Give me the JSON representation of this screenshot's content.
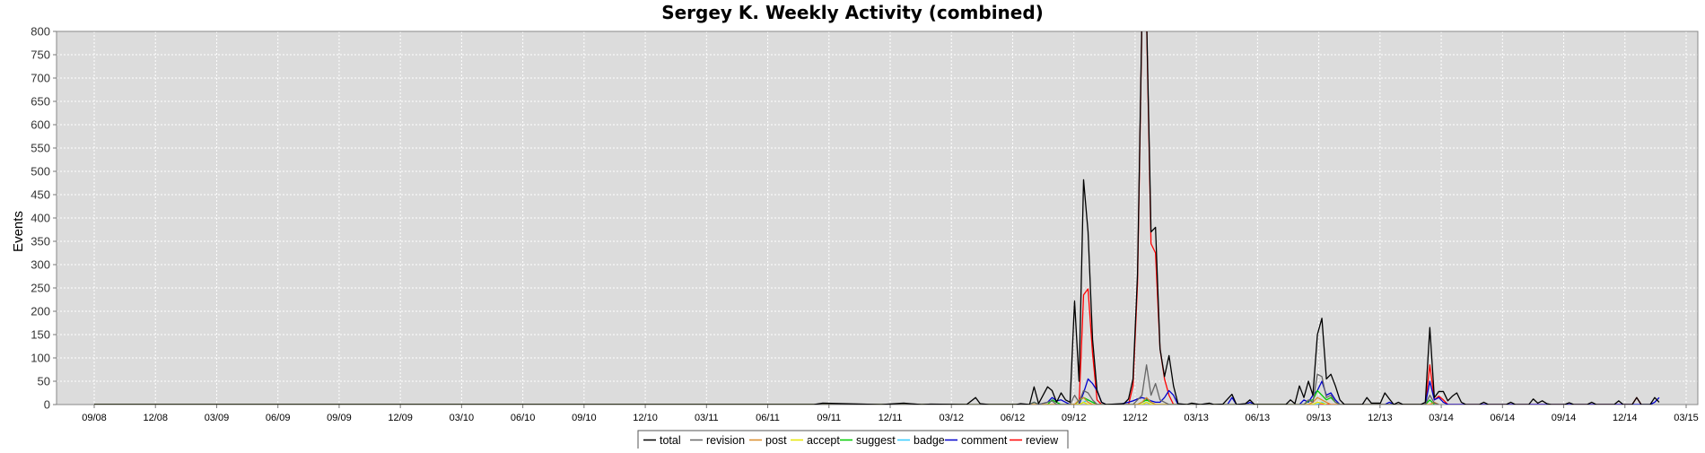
{
  "chart_data": {
    "type": "line",
    "title": "Sergey K. Weekly Activity (combined)",
    "xlabel": "",
    "ylabel": "Events",
    "ylim": [
      0,
      800
    ],
    "yticks": [
      0,
      50,
      100,
      150,
      200,
      250,
      300,
      350,
      400,
      450,
      500,
      550,
      600,
      650,
      700,
      750,
      800
    ],
    "grid": true,
    "legend_position": "bottom-center",
    "x_tick_labels": [
      "09/08",
      "12/08",
      "03/09",
      "06/09",
      "09/09",
      "12/09",
      "03/10",
      "06/10",
      "09/10",
      "12/10",
      "03/11",
      "06/11",
      "09/11",
      "12/11",
      "03/12",
      "06/12",
      "09/12",
      "12/12",
      "03/13",
      "06/13",
      "09/13",
      "12/13",
      "03/14",
      "06/14",
      "09/14",
      "12/14",
      "03/15"
    ],
    "x_range_weeks": [
      0,
      354
    ],
    "series": [
      {
        "name": "total",
        "color": "#000000",
        "points": [
          [
            0,
            0
          ],
          [
            160,
            0
          ],
          [
            162,
            3
          ],
          [
            175,
            0
          ],
          [
            180,
            3
          ],
          [
            184,
            0
          ],
          [
            186,
            1
          ],
          [
            194,
            0
          ],
          [
            196,
            15
          ],
          [
            197,
            2
          ],
          [
            199,
            0
          ],
          [
            205,
            0
          ],
          [
            206,
            2
          ],
          [
            208,
            0
          ],
          [
            209,
            38
          ],
          [
            210,
            2
          ],
          [
            211,
            20
          ],
          [
            212,
            38
          ],
          [
            213,
            30
          ],
          [
            214,
            5
          ],
          [
            215,
            25
          ],
          [
            216,
            10
          ],
          [
            217,
            5
          ],
          [
            218,
            222
          ],
          [
            219,
            50
          ],
          [
            220,
            482
          ],
          [
            221,
            370
          ],
          [
            222,
            140
          ],
          [
            223,
            30
          ],
          [
            224,
            5
          ],
          [
            225,
            0
          ],
          [
            229,
            2
          ],
          [
            230,
            12
          ],
          [
            231,
            55
          ],
          [
            232,
            280
          ],
          [
            233,
            840
          ],
          [
            234,
            840
          ],
          [
            235,
            370
          ],
          [
            236,
            380
          ],
          [
            237,
            120
          ],
          [
            238,
            60
          ],
          [
            239,
            105
          ],
          [
            240,
            40
          ],
          [
            241,
            2
          ],
          [
            243,
            0
          ],
          [
            244,
            3
          ],
          [
            246,
            0
          ],
          [
            248,
            3
          ],
          [
            249,
            0
          ],
          [
            251,
            1
          ],
          [
            253,
            22
          ],
          [
            254,
            0
          ],
          [
            256,
            2
          ],
          [
            257,
            10
          ],
          [
            258,
            0
          ],
          [
            265,
            0
          ],
          [
            266,
            10
          ],
          [
            267,
            2
          ],
          [
            268,
            40
          ],
          [
            269,
            15
          ],
          [
            270,
            50
          ],
          [
            271,
            20
          ],
          [
            272,
            150
          ],
          [
            273,
            185
          ],
          [
            274,
            55
          ],
          [
            275,
            65
          ],
          [
            276,
            40
          ],
          [
            277,
            10
          ],
          [
            278,
            0
          ],
          [
            282,
            0
          ],
          [
            283,
            15
          ],
          [
            284,
            3
          ],
          [
            286,
            3
          ],
          [
            287,
            25
          ],
          [
            288,
            12
          ],
          [
            289,
            0
          ],
          [
            290,
            5
          ],
          [
            291,
            0
          ],
          [
            295,
            0
          ],
          [
            296,
            5
          ],
          [
            297,
            165
          ],
          [
            298,
            15
          ],
          [
            299,
            28
          ],
          [
            300,
            28
          ],
          [
            301,
            8
          ],
          [
            302,
            18
          ],
          [
            303,
            25
          ],
          [
            304,
            5
          ],
          [
            305,
            0
          ],
          [
            308,
            0
          ],
          [
            309,
            5
          ],
          [
            310,
            0
          ],
          [
            314,
            0
          ],
          [
            315,
            5
          ],
          [
            316,
            0
          ],
          [
            319,
            0
          ],
          [
            320,
            12
          ],
          [
            321,
            3
          ],
          [
            322,
            8
          ],
          [
            323,
            2
          ],
          [
            324,
            0
          ],
          [
            327,
            0
          ],
          [
            328,
            4
          ],
          [
            329,
            0
          ],
          [
            332,
            0
          ],
          [
            333,
            5
          ],
          [
            334,
            0
          ],
          [
            338,
            0
          ],
          [
            339,
            8
          ],
          [
            340,
            0
          ],
          [
            342,
            0
          ],
          [
            343,
            15
          ],
          [
            344,
            0
          ],
          [
            346,
            0
          ],
          [
            347,
            15
          ],
          [
            348,
            5
          ]
        ]
      },
      {
        "name": "revision",
        "color": "#666666",
        "points": [
          [
            0,
            0
          ],
          [
            208,
            0
          ],
          [
            209,
            5
          ],
          [
            210,
            0
          ],
          [
            212,
            5
          ],
          [
            213,
            8
          ],
          [
            214,
            0
          ],
          [
            217,
            0
          ],
          [
            218,
            20
          ],
          [
            219,
            5
          ],
          [
            220,
            30
          ],
          [
            221,
            25
          ],
          [
            222,
            10
          ],
          [
            223,
            0
          ],
          [
            231,
            0
          ],
          [
            232,
            10
          ],
          [
            233,
            20
          ],
          [
            234,
            85
          ],
          [
            235,
            20
          ],
          [
            236,
            45
          ],
          [
            237,
            10
          ],
          [
            238,
            5
          ],
          [
            239,
            0
          ],
          [
            269,
            0
          ],
          [
            270,
            10
          ],
          [
            271,
            5
          ],
          [
            272,
            65
          ],
          [
            273,
            60
          ],
          [
            274,
            15
          ],
          [
            275,
            20
          ],
          [
            276,
            5
          ],
          [
            277,
            0
          ],
          [
            296,
            0
          ],
          [
            297,
            20
          ],
          [
            298,
            3
          ],
          [
            299,
            0
          ]
        ]
      },
      {
        "name": "post",
        "color": "#d98c2a",
        "points": [
          [
            0,
            0
          ],
          [
            218,
            0
          ],
          [
            219,
            10
          ],
          [
            220,
            15
          ],
          [
            221,
            5
          ],
          [
            222,
            0
          ],
          [
            232,
            0
          ],
          [
            233,
            5
          ],
          [
            234,
            15
          ],
          [
            235,
            5
          ],
          [
            236,
            0
          ],
          [
            270,
            0
          ],
          [
            271,
            5
          ],
          [
            272,
            15
          ],
          [
            273,
            10
          ],
          [
            274,
            5
          ],
          [
            275,
            0
          ],
          [
            297,
            0
          ],
          [
            298,
            5
          ],
          [
            299,
            0
          ]
        ]
      },
      {
        "name": "accept",
        "color": "#e6e600",
        "points": [
          [
            0,
            0
          ],
          [
            219,
            0
          ],
          [
            220,
            5
          ],
          [
            221,
            0
          ],
          [
            233,
            0
          ],
          [
            234,
            5
          ],
          [
            235,
            0
          ],
          [
            271,
            0
          ],
          [
            272,
            5
          ],
          [
            273,
            3
          ],
          [
            274,
            0
          ]
        ]
      },
      {
        "name": "suggest",
        "color": "#00cc00",
        "points": [
          [
            0,
            0
          ],
          [
            208,
            0
          ],
          [
            209,
            5
          ],
          [
            210,
            0
          ],
          [
            212,
            0
          ],
          [
            213,
            10
          ],
          [
            214,
            5
          ],
          [
            215,
            0
          ],
          [
            218,
            0
          ],
          [
            219,
            8
          ],
          [
            220,
            15
          ],
          [
            221,
            10
          ],
          [
            222,
            5
          ],
          [
            223,
            0
          ],
          [
            232,
            0
          ],
          [
            233,
            5
          ],
          [
            234,
            10
          ],
          [
            235,
            5
          ],
          [
            236,
            0
          ],
          [
            269,
            0
          ],
          [
            270,
            8
          ],
          [
            271,
            10
          ],
          [
            272,
            30
          ],
          [
            273,
            20
          ],
          [
            274,
            10
          ],
          [
            275,
            15
          ],
          [
            276,
            5
          ],
          [
            277,
            0
          ],
          [
            296,
            0
          ],
          [
            297,
            10
          ],
          [
            298,
            0
          ]
        ]
      },
      {
        "name": "badge",
        "color": "#33ccff",
        "points": [
          [
            0,
            0
          ],
          [
            219,
            0
          ],
          [
            220,
            5
          ],
          [
            221,
            10
          ],
          [
            222,
            5
          ],
          [
            223,
            0
          ],
          [
            233,
            0
          ],
          [
            234,
            5
          ],
          [
            235,
            0
          ],
          [
            272,
            0
          ],
          [
            273,
            5
          ],
          [
            274,
            0
          ]
        ]
      },
      {
        "name": "comment",
        "color": "#0000cc",
        "points": [
          [
            0,
            0
          ],
          [
            208,
            0
          ],
          [
            209,
            5
          ],
          [
            210,
            0
          ],
          [
            212,
            5
          ],
          [
            213,
            15
          ],
          [
            214,
            8
          ],
          [
            215,
            10
          ],
          [
            216,
            5
          ],
          [
            217,
            0
          ],
          [
            219,
            0
          ],
          [
            220,
            25
          ],
          [
            221,
            55
          ],
          [
            222,
            45
          ],
          [
            223,
            30
          ],
          [
            224,
            5
          ],
          [
            225,
            0
          ],
          [
            228,
            0
          ],
          [
            229,
            3
          ],
          [
            230,
            5
          ],
          [
            231,
            8
          ],
          [
            232,
            12
          ],
          [
            233,
            15
          ],
          [
            234,
            12
          ],
          [
            235,
            8
          ],
          [
            236,
            5
          ],
          [
            237,
            5
          ],
          [
            238,
            15
          ],
          [
            239,
            30
          ],
          [
            240,
            20
          ],
          [
            241,
            0
          ],
          [
            252,
            0
          ],
          [
            253,
            15
          ],
          [
            254,
            0
          ],
          [
            256,
            0
          ],
          [
            257,
            5
          ],
          [
            258,
            0
          ],
          [
            268,
            0
          ],
          [
            269,
            10
          ],
          [
            270,
            5
          ],
          [
            271,
            20
          ],
          [
            272,
            30
          ],
          [
            273,
            50
          ],
          [
            274,
            20
          ],
          [
            275,
            25
          ],
          [
            276,
            10
          ],
          [
            277,
            0
          ],
          [
            287,
            0
          ],
          [
            288,
            5
          ],
          [
            289,
            0
          ],
          [
            296,
            0
          ],
          [
            297,
            50
          ],
          [
            298,
            10
          ],
          [
            299,
            15
          ],
          [
            300,
            5
          ],
          [
            301,
            0
          ],
          [
            346,
            0
          ],
          [
            347,
            5
          ],
          [
            348,
            15
          ]
        ]
      },
      {
        "name": "review",
        "color": "#ff0000",
        "points": [
          [
            0,
            0
          ],
          [
            219,
            0
          ],
          [
            220,
            235
          ],
          [
            221,
            248
          ],
          [
            222,
            110
          ],
          [
            223,
            10
          ],
          [
            224,
            0
          ],
          [
            230,
            0
          ],
          [
            231,
            40
          ],
          [
            232,
            260
          ],
          [
            233,
            830
          ],
          [
            234,
            830
          ],
          [
            235,
            345
          ],
          [
            236,
            325
          ],
          [
            237,
            120
          ],
          [
            238,
            55
          ],
          [
            239,
            20
          ],
          [
            240,
            0
          ],
          [
            296,
            0
          ],
          [
            297,
            85
          ],
          [
            298,
            10
          ],
          [
            299,
            18
          ],
          [
            300,
            10
          ],
          [
            301,
            0
          ],
          [
            342,
            0
          ],
          [
            343,
            15
          ],
          [
            344,
            0
          ]
        ]
      }
    ]
  }
}
